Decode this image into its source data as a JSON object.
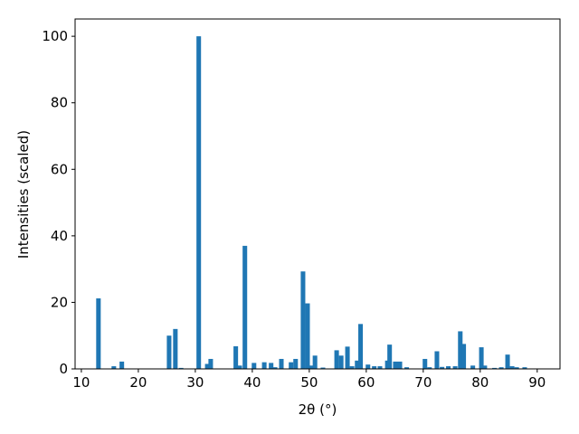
{
  "chart_data": {
    "type": "bar",
    "x_label": "2θ (°)",
    "y_label": "Intensities (scaled)",
    "x": [
      13.0,
      15.7,
      17.1,
      25.4,
      26.5,
      27.5,
      30.6,
      32.1,
      32.7,
      37.1,
      37.8,
      38.7,
      40.3,
      42.1,
      43.3,
      44.0,
      45.1,
      46.8,
      47.6,
      48.9,
      49.7,
      50.3,
      51.0,
      52.4,
      54.8,
      55.6,
      56.7,
      57.5,
      58.4,
      59.0,
      60.3,
      61.4,
      62.4,
      63.7,
      64.1,
      65.1,
      65.9,
      67.1,
      70.3,
      71.1,
      72.4,
      73.3,
      74.4,
      75.6,
      76.5,
      77.1,
      78.7,
      80.2,
      80.8,
      82.5,
      83.7,
      84.8,
      85.6,
      86.4,
      87.8
    ],
    "values": [
      21.2,
      0.8,
      2.2,
      10,
      12,
      0.3,
      100,
      1.5,
      3,
      6.8,
      1,
      37,
      1.8,
      2,
      1.8,
      0.5,
      3,
      2,
      3,
      29.3,
      19.7,
      1,
      4,
      0.4,
      5.6,
      4,
      6.7,
      0.8,
      2.5,
      13.5,
      1.3,
      0.8,
      0.8,
      2.5,
      7.3,
      2.2,
      2.2,
      0.5,
      3,
      0.5,
      5.3,
      0.6,
      0.8,
      0.8,
      11.3,
      7.5,
      1,
      6.5,
      1,
      0.3,
      0.5,
      4.3,
      0.8,
      0.5,
      0.5
    ],
    "bar_width": 0.8,
    "color": "#1f77b4",
    "xlim": [
      8.9,
      94.0
    ],
    "ylim": [
      0,
      105.2
    ],
    "xticks": [
      10,
      20,
      30,
      40,
      50,
      60,
      70,
      80,
      90
    ],
    "yticks": [
      0,
      20,
      40,
      60,
      80,
      100
    ]
  }
}
